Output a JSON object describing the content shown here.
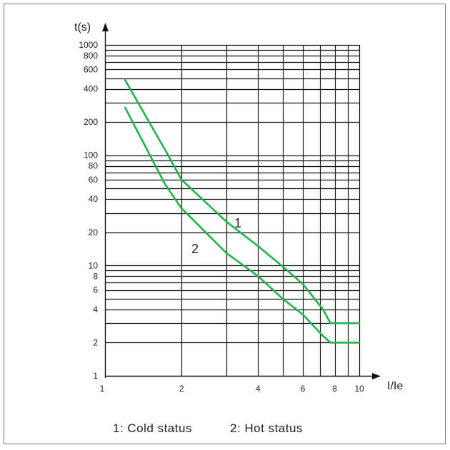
{
  "chart_data": {
    "type": "line",
    "title": "",
    "xlabel": "I/Ie",
    "ylabel": "t(s)",
    "x_scale": "log",
    "y_scale": "log",
    "xlim": [
      1,
      10
    ],
    "ylim": [
      1,
      1000
    ],
    "grid": true,
    "x_ticks": [
      1,
      2,
      4,
      6,
      8,
      10
    ],
    "x_tick_labels": [
      "1",
      "2",
      "4",
      "6",
      "8",
      "10"
    ],
    "x_gridlines": [
      2,
      3,
      4,
      5,
      6,
      7,
      8,
      9,
      10
    ],
    "y_ticks": [
      1,
      2,
      4,
      6,
      8,
      10,
      20,
      40,
      60,
      80,
      100,
      200,
      400,
      600,
      800,
      1000
    ],
    "y_tick_labels": [
      "1",
      "2",
      "4",
      "6",
      "8",
      "10",
      "20",
      "40",
      "60",
      "80",
      "100",
      "200",
      "400",
      "600",
      "800",
      "1000"
    ],
    "y_gridlines": [
      2,
      3,
      4,
      5,
      6,
      7,
      8,
      9,
      10,
      20,
      30,
      40,
      50,
      60,
      70,
      80,
      90,
      100,
      200,
      300,
      400,
      500,
      600,
      700,
      800,
      900,
      1000
    ],
    "line_color": "#22b14c",
    "series": [
      {
        "name": "1",
        "x": [
          1.2,
          1.75,
          2.0,
          3.0,
          4.0,
          5.0,
          6.0,
          7.2,
          7.7,
          10.0
        ],
        "y": [
          480,
          105,
          60,
          25,
          15,
          9.8,
          6.8,
          4.0,
          3.0,
          3.0
        ]
      },
      {
        "name": "2",
        "x": [
          1.2,
          1.72,
          2.0,
          3.0,
          4.0,
          5.0,
          6.0,
          7.2,
          7.7,
          10.0
        ],
        "y": [
          270,
          55,
          33,
          13,
          8,
          5,
          3.6,
          2.3,
          2.0,
          2.0
        ]
      }
    ]
  },
  "legend": {
    "cold": "1: Cold status",
    "hot": "2: Hot status"
  }
}
